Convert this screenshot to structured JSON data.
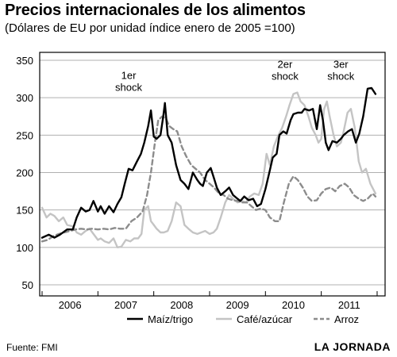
{
  "header": {
    "title": "Precios internacionales de los alimentos",
    "subtitle": "(Dólares de EU por unidad índice enero de 2005 =100)"
  },
  "footer": {
    "source": "Fuente: FMI",
    "brand": "LA JORNADA"
  },
  "colors": {
    "maiz": "#000000",
    "cafe": "#c4c4c4",
    "arroz": "#8c8c8c",
    "grid": "#b0b0b0"
  },
  "chart_data": {
    "type": "line",
    "title": "Precios internacionales de los alimentos",
    "subtitle": "(Dólares de EU por unidad índice enero de 2005 =100)",
    "xlabel": "",
    "ylabel": "",
    "xlim": [
      2005.5,
      2011.6
    ],
    "ylim": [
      50,
      350
    ],
    "y_ticks": [
      50,
      100,
      150,
      200,
      250,
      300,
      350
    ],
    "x_tick_labels": [
      {
        "label": "2006",
        "x": 2006.0
      },
      {
        "label": "2007",
        "x": 2007.0
      },
      {
        "label": "2008",
        "x": 2008.0
      },
      {
        "label": "2009",
        "x": 2009.0
      },
      {
        "label": "2010",
        "x": 2010.0
      },
      {
        "label": "2011",
        "x": 2011.0
      }
    ],
    "grid": "horizontal",
    "legend": "bottom",
    "annotations": [
      {
        "lines": [
          "1er",
          "shock"
        ],
        "x": 2007.05,
        "y": 325
      },
      {
        "lines": [
          "2er",
          "shock"
        ],
        "x": 2009.85,
        "y": 340
      },
      {
        "lines": [
          "3er",
          "shock"
        ],
        "x": 2010.85,
        "y": 340
      }
    ],
    "series": [
      {
        "name": "Maíz/trigo",
        "style": "solid",
        "x": [
          2005.5,
          2005.62,
          2005.72,
          2005.82,
          2005.95,
          2006.05,
          2006.12,
          2006.2,
          2006.28,
          2006.35,
          2006.42,
          2006.5,
          2006.55,
          2006.62,
          2006.7,
          2006.78,
          2006.85,
          2006.92,
          2006.98,
          2007.05,
          2007.12,
          2007.2,
          2007.27,
          2007.33,
          2007.4,
          2007.45,
          2007.5,
          2007.55,
          2007.62,
          2007.67,
          2007.7,
          2007.75,
          2007.82,
          2007.9,
          2007.98,
          2008.05,
          2008.12,
          2008.2,
          2008.28,
          2008.33,
          2008.38,
          2008.45,
          2008.52,
          2008.58,
          2008.63,
          2008.7,
          2008.78,
          2008.85,
          2008.92,
          2009.0,
          2009.05,
          2009.12,
          2009.2,
          2009.28,
          2009.35,
          2009.42,
          2009.5,
          2009.57,
          2009.63,
          2009.7,
          2009.75,
          2009.82,
          2009.88,
          2009.95,
          2010.0,
          2010.08,
          2010.15,
          2010.2,
          2010.28,
          2010.35,
          2010.42,
          2010.48,
          2010.53,
          2010.58,
          2010.63,
          2010.7,
          2010.78,
          2010.85,
          2010.9,
          2010.98,
          2011.05,
          2011.12,
          2011.18,
          2011.25,
          2011.33,
          2011.4,
          2011.47
        ],
        "values": [
          113,
          117,
          113,
          117,
          124,
          124,
          140,
          153,
          148,
          150,
          162,
          148,
          155,
          145,
          155,
          147,
          158,
          167,
          185,
          205,
          203,
          215,
          225,
          240,
          262,
          283,
          248,
          245,
          250,
          275,
          293,
          250,
          240,
          210,
          190,
          185,
          178,
          200,
          190,
          185,
          182,
          200,
          206,
          192,
          180,
          170,
          175,
          180,
          170,
          165,
          162,
          168,
          163,
          165,
          155,
          158,
          178,
          200,
          220,
          225,
          250,
          255,
          252,
          270,
          278,
          280,
          280,
          285,
          283,
          285,
          258,
          290,
          270,
          240,
          230,
          242,
          240,
          245,
          250,
          255,
          258,
          240,
          252,
          275,
          312,
          313,
          305
        ]
      },
      {
        "name": "Café/azúcar",
        "style": "solid",
        "x": [
          2005.5,
          2005.58,
          2005.65,
          2005.72,
          2005.8,
          2005.88,
          2005.95,
          2006.05,
          2006.12,
          2006.2,
          2006.28,
          2006.35,
          2006.42,
          2006.5,
          2006.55,
          2006.62,
          2006.7,
          2006.78,
          2006.85,
          2006.92,
          2007.0,
          2007.08,
          2007.15,
          2007.22,
          2007.28,
          2007.33,
          2007.4,
          2007.45,
          2007.5,
          2007.55,
          2007.62,
          2007.68,
          2007.75,
          2007.82,
          2007.9,
          2007.98,
          2008.05,
          2008.12,
          2008.2,
          2008.28,
          2008.35,
          2008.42,
          2008.5,
          2008.57,
          2008.63,
          2008.7,
          2008.78,
          2008.85,
          2008.92,
          2009.0,
          2009.08,
          2009.15,
          2009.22,
          2009.3,
          2009.38,
          2009.45,
          2009.52,
          2009.58,
          2009.65,
          2009.72,
          2009.8,
          2009.87,
          2009.93,
          2010.0,
          2010.07,
          2010.13,
          2010.2,
          2010.27,
          2010.33,
          2010.4,
          2010.45,
          2010.5,
          2010.55,
          2010.6,
          2010.65,
          2010.72,
          2010.78,
          2010.85,
          2010.9,
          2010.97,
          2011.03,
          2011.1,
          2011.17,
          2011.23,
          2011.3,
          2011.38,
          2011.47
        ],
        "values": [
          153,
          140,
          145,
          142,
          135,
          140,
          130,
          128,
          120,
          117,
          122,
          125,
          118,
          110,
          112,
          108,
          106,
          112,
          100,
          101,
          110,
          108,
          112,
          112,
          118,
          150,
          155,
          135,
          130,
          125,
          120,
          120,
          122,
          135,
          160,
          155,
          130,
          125,
          120,
          118,
          120,
          122,
          118,
          120,
          125,
          140,
          160,
          170,
          165,
          160,
          162,
          160,
          168,
          172,
          170,
          185,
          225,
          210,
          235,
          248,
          260,
          275,
          290,
          305,
          307,
          295,
          290,
          275,
          260,
          250,
          240,
          245,
          285,
          295,
          275,
          250,
          235,
          240,
          255,
          280,
          285,
          260,
          215,
          200,
          205,
          185,
          172
        ]
      },
      {
        "name": "Arroz",
        "style": "dashed",
        "x": [
          2005.5,
          2005.6,
          2005.7,
          2005.8,
          2005.9,
          2006.0,
          2006.1,
          2006.2,
          2006.3,
          2006.4,
          2006.5,
          2006.6,
          2006.7,
          2006.8,
          2006.9,
          2007.0,
          2007.1,
          2007.2,
          2007.3,
          2007.38,
          2007.45,
          2007.52,
          2007.58,
          2007.65,
          2007.72,
          2007.78,
          2007.85,
          2007.92,
          2008.0,
          2008.08,
          2008.17,
          2008.25,
          2008.33,
          2008.42,
          2008.5,
          2008.58,
          2008.67,
          2008.75,
          2008.83,
          2008.92,
          2009.0,
          2009.08,
          2009.17,
          2009.25,
          2009.33,
          2009.42,
          2009.5,
          2009.58,
          2009.67,
          2009.75,
          2009.83,
          2009.92,
          2010.0,
          2010.08,
          2010.17,
          2010.25,
          2010.33,
          2010.42,
          2010.5,
          2010.58,
          2010.67,
          2010.75,
          2010.83,
          2010.92,
          2011.0,
          2011.08,
          2011.17,
          2011.25,
          2011.33,
          2011.42,
          2011.47
        ],
        "values": [
          108,
          110,
          115,
          118,
          120,
          122,
          124,
          125,
          124,
          125,
          124,
          125,
          124,
          126,
          125,
          125,
          135,
          140,
          148,
          170,
          200,
          240,
          270,
          275,
          272,
          262,
          258,
          255,
          235,
          222,
          210,
          205,
          200,
          190,
          185,
          180,
          172,
          170,
          165,
          163,
          162,
          160,
          160,
          155,
          150,
          152,
          150,
          140,
          135,
          135,
          160,
          185,
          195,
          190,
          180,
          168,
          162,
          163,
          172,
          178,
          180,
          175,
          182,
          185,
          180,
          170,
          165,
          162,
          165,
          172,
          168
        ]
      }
    ]
  }
}
